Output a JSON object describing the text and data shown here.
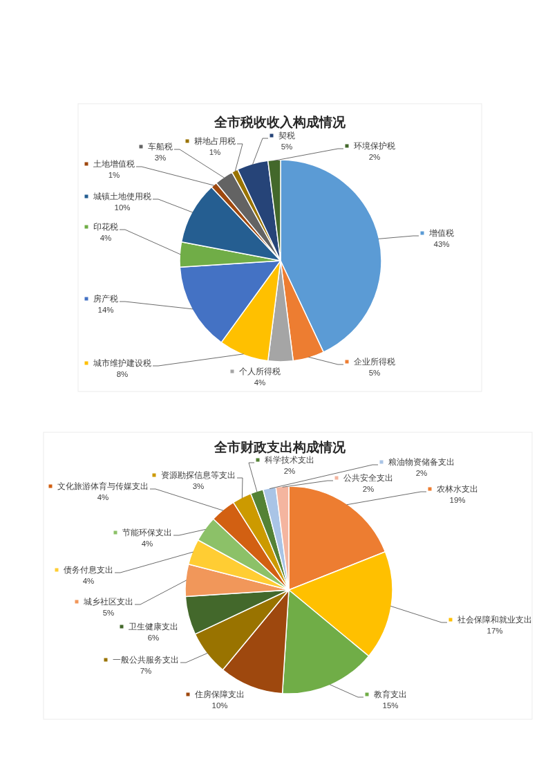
{
  "chart_data": [
    {
      "type": "pie",
      "title": "全市税收收入构成情况",
      "legend": true,
      "categories": [
        "增值税",
        "企业所得税",
        "个人所得税",
        "城市维护建设税",
        "房产税",
        "印花税",
        "城镇土地使用税",
        "土地增值税",
        "车船税",
        "耕地占用税",
        "契税",
        "环境保护税"
      ],
      "values": [
        43,
        5,
        4,
        8,
        14,
        4,
        10,
        1,
        3,
        1,
        5,
        2
      ],
      "value_labels": [
        "43%",
        "5%",
        "4%",
        "8%",
        "14%",
        "4%",
        "10%",
        "1%",
        "3%",
        "1%",
        "5%",
        "2%"
      ],
      "colors": [
        "#5b9bd5",
        "#ed7d31",
        "#a5a5a5",
        "#ffc000",
        "#4472c4",
        "#70ad47",
        "#255e91",
        "#9e480e",
        "#636363",
        "#997300",
        "#264478",
        "#43682b"
      ]
    },
    {
      "type": "pie",
      "title": "全市财政支出构成情况",
      "legend": true,
      "categories": [
        "农林水支出",
        "社会保障和就业支出",
        "教育支出",
        "住房保障支出",
        "一般公共服务支出",
        "卫生健康支出",
        "城乡社区支出",
        "债务付息支出",
        "节能环保支出",
        "文化旅游体育与传媒支出",
        "资源勘探信息等支出",
        "科学技术支出",
        "粮油物资储备支出",
        "公共安全支出"
      ],
      "values": [
        19,
        17,
        15,
        10,
        7,
        6,
        5,
        4,
        4,
        4,
        3,
        2,
        2,
        2
      ],
      "value_labels": [
        "19%",
        "17%",
        "15%",
        "10%",
        "7%",
        "6%",
        "5%",
        "4%",
        "4%",
        "4%",
        "3%",
        "2%",
        "2%",
        "2%"
      ],
      "colors": [
        "#ed7d31",
        "#ffc000",
        "#70ad47",
        "#9e480e",
        "#997300",
        "#43682b",
        "#f1975a",
        "#ffcd33",
        "#8cc168",
        "#d26012",
        "#cc9a00",
        "#548235",
        "#a9c4e6",
        "#f4b59f"
      ]
    }
  ]
}
